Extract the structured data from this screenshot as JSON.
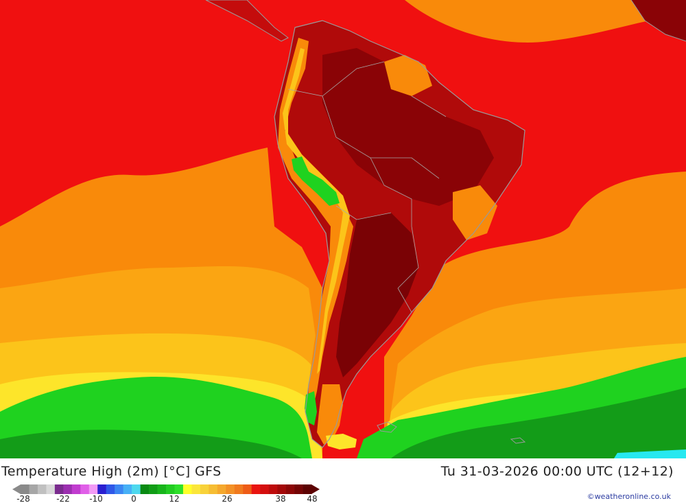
{
  "header": {
    "title": "Temperature High (2m) [°C] GFS",
    "datetime": "Tu 31-03-2026 00:00 UTC (12+12)"
  },
  "legend": {
    "tick_labels": [
      "-28",
      "-22",
      "-10",
      "0",
      "12",
      "26",
      "38",
      "48"
    ],
    "colors": [
      "#8a8a8a",
      "#a6a6a6",
      "#c0c0c0",
      "#d8d8d8",
      "#7a2b8e",
      "#9c2fb0",
      "#c13ccf",
      "#e05fe8",
      "#f29af5",
      "#2a1fd0",
      "#2f58e8",
      "#3b86f2",
      "#47b0f6",
      "#4ed8ee",
      "#0a8a12",
      "#119d16",
      "#18b41b",
      "#22cc22",
      "#2fe02a",
      "#ffff2a",
      "#fbe63a",
      "#f8d23a",
      "#f6bd33",
      "#f5a82d",
      "#f39126",
      "#f07a1e",
      "#ee5c17",
      "#e91410",
      "#d40e0e",
      "#be0b0b",
      "#a40808",
      "#8c0606",
      "#740404",
      "#5c0202"
    ]
  },
  "credit": "©weatheronline.co.uk",
  "map_colors": {
    "very_hot": "#7a0205",
    "hot": "#b00a0a",
    "warm_red": "#f01010",
    "orange": "#f98a0a",
    "light_orange": "#fba512",
    "yellow_orange": "#fcc41a",
    "yellow": "#fde52a",
    "green": "#1fd21f",
    "dark_green": "#139c18",
    "cyan": "#27e8f0",
    "coast_grey": "#9a9a9a"
  }
}
